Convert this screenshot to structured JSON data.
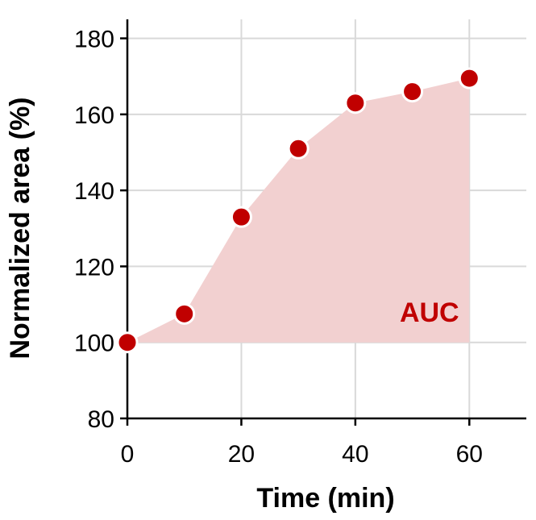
{
  "chart_data": {
    "type": "area",
    "title": "",
    "xlabel": "Time (min)",
    "ylabel": "Normalized area (%)",
    "xlim": [
      0,
      70
    ],
    "ylim": [
      80,
      185
    ],
    "xticks": [
      0,
      20,
      40,
      60
    ],
    "yticks": [
      80,
      100,
      120,
      140,
      160,
      180
    ],
    "grid": true,
    "series": [
      {
        "name": "Normalized area",
        "x": [
          0,
          10,
          20,
          30,
          40,
          50,
          60
        ],
        "y": [
          100,
          107.5,
          133,
          151,
          163,
          166,
          169.5
        ]
      }
    ],
    "area_baseline": 100,
    "annotations": [
      {
        "text": "AUC",
        "x": 53,
        "y": 108
      }
    ],
    "colors": {
      "marker": "#c00000",
      "marker_edge": "#ffffff",
      "fill": "#f2d0d0",
      "annotation": "#c00000",
      "grid": "#d9d9d9"
    }
  }
}
